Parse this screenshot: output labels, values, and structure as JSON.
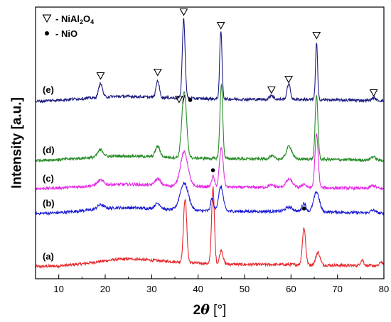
{
  "chart_data": {
    "type": "line",
    "xlabel": "2θ [°]",
    "xlabel_parts": {
      "theta": "2θ",
      "unit": "[°]"
    },
    "ylabel": "Intensity [a.u.]",
    "xlim": [
      5,
      80
    ],
    "x_ticks": [
      10,
      20,
      30,
      40,
      50,
      60,
      70,
      80
    ],
    "y_ticks": "none",
    "grid": false,
    "legend": {
      "position": "top-left",
      "entries": [
        {
          "marker": "triangle-down-open",
          "text": "NiAl2O4",
          "parts": [
            "- NiAl",
            "2",
            "O",
            "4"
          ]
        },
        {
          "marker": "filled-circle",
          "text": "NiO",
          "parts": [
            "- NiO"
          ]
        }
      ]
    },
    "series": [
      {
        "name": "(a)",
        "color": "#e8262a",
        "baseline": 0,
        "background": [
          [
            5,
            4
          ],
          [
            10,
            5
          ],
          [
            15,
            8
          ],
          [
            22,
            14
          ],
          [
            26,
            15
          ],
          [
            30,
            13
          ],
          [
            35,
            11
          ],
          [
            40,
            9
          ],
          [
            50,
            7
          ],
          [
            60,
            7
          ],
          [
            70,
            6
          ],
          [
            80,
            5
          ]
        ],
        "peaks": [
          [
            37.2,
            90,
            0.35
          ],
          [
            43.2,
            108,
            0.3
          ],
          [
            45.0,
            20,
            0.35
          ],
          [
            62.8,
            52,
            0.35
          ],
          [
            65.8,
            18,
            0.45
          ],
          [
            75.3,
            8,
            0.35
          ],
          [
            79.4,
            6,
            0.3
          ]
        ],
        "noise": 2
      },
      {
        "name": "(b)",
        "color": "#1b1bd6",
        "baseline": 75,
        "background": [
          [
            5,
            4
          ],
          [
            10,
            5
          ],
          [
            15,
            8
          ],
          [
            22,
            12
          ],
          [
            26,
            12
          ],
          [
            30,
            11
          ],
          [
            35,
            9
          ],
          [
            40,
            8
          ],
          [
            50,
            7
          ],
          [
            60,
            7
          ],
          [
            70,
            6
          ],
          [
            80,
            4
          ]
        ],
        "peaks": [
          [
            19.0,
            6,
            0.7
          ],
          [
            31.3,
            8,
            0.6
          ],
          [
            37.0,
            38,
            0.9
          ],
          [
            43.0,
            18,
            0.3
          ],
          [
            44.9,
            34,
            0.5
          ],
          [
            59.6,
            6,
            0.8
          ],
          [
            62.8,
            12,
            0.4
          ],
          [
            65.5,
            28,
            0.6
          ],
          [
            77.7,
            4,
            0.6
          ]
        ],
        "noise": 2
      },
      {
        "name": "(c)",
        "color": "#e629e6",
        "baseline": 110,
        "background": [
          [
            5,
            4
          ],
          [
            10,
            5
          ],
          [
            15,
            7
          ],
          [
            22,
            10
          ],
          [
            26,
            10
          ],
          [
            30,
            9
          ],
          [
            35,
            8
          ],
          [
            40,
            7
          ],
          [
            50,
            6
          ],
          [
            60,
            6
          ],
          [
            70,
            5
          ],
          [
            80,
            4
          ]
        ],
        "peaks": [
          [
            19.0,
            7,
            0.7
          ],
          [
            31.3,
            9,
            0.6
          ],
          [
            37.0,
            48,
            0.8
          ],
          [
            43.2,
            15,
            0.3
          ],
          [
            45.0,
            55,
            0.4
          ],
          [
            55.8,
            3,
            0.6
          ],
          [
            59.6,
            11,
            0.7
          ],
          [
            62.8,
            5,
            0.4
          ],
          [
            65.5,
            75,
            0.35
          ],
          [
            77.7,
            4,
            0.6
          ]
        ],
        "noise": 2
      },
      {
        "name": "(d)",
        "color": "#268c26",
        "baseline": 150,
        "background": [
          [
            5,
            4
          ],
          [
            10,
            5
          ],
          [
            15,
            7
          ],
          [
            22,
            10
          ],
          [
            26,
            10
          ],
          [
            30,
            9
          ],
          [
            35,
            8
          ],
          [
            40,
            7
          ],
          [
            50,
            6
          ],
          [
            60,
            6
          ],
          [
            70,
            5
          ],
          [
            80,
            4
          ]
        ],
        "peaks": [
          [
            19.0,
            10,
            0.6
          ],
          [
            31.3,
            15,
            0.5
          ],
          [
            37.0,
            93,
            0.5
          ],
          [
            45.0,
            105,
            0.3
          ],
          [
            55.8,
            4,
            0.5
          ],
          [
            59.6,
            18,
            0.6
          ],
          [
            65.5,
            90,
            0.3
          ],
          [
            77.7,
            5,
            0.5
          ]
        ],
        "noise": 2
      },
      {
        "name": "(e)",
        "color": "#1c1c80",
        "baseline": 235,
        "background": [
          [
            5,
            2
          ],
          [
            10,
            4
          ],
          [
            15,
            6
          ],
          [
            22,
            9
          ],
          [
            26,
            9
          ],
          [
            30,
            8
          ],
          [
            35,
            7
          ],
          [
            40,
            6
          ],
          [
            50,
            5
          ],
          [
            60,
            5
          ],
          [
            70,
            4
          ],
          [
            80,
            3
          ]
        ],
        "peaks": [
          [
            19.0,
            20,
            0.4
          ],
          [
            31.3,
            24,
            0.35
          ],
          [
            36.9,
            112,
            0.3
          ],
          [
            44.9,
            96,
            0.25
          ],
          [
            55.8,
            6,
            0.4
          ],
          [
            59.5,
            22,
            0.35
          ],
          [
            65.5,
            81,
            0.22
          ],
          [
            77.8,
            4,
            0.4
          ]
        ],
        "noise": 2
      }
    ],
    "annotations": [
      {
        "type": "triangle",
        "x": 19.0,
        "intensity": 273
      },
      {
        "type": "triangle",
        "x": 31.3,
        "intensity": 278
      },
      {
        "type": "triangle",
        "x": 36.9,
        "intensity": 363
      },
      {
        "type": "triangle",
        "x": 44.9,
        "intensity": 344
      },
      {
        "type": "triangle",
        "x": 55.8,
        "intensity": 253
      },
      {
        "type": "triangle",
        "x": 59.5,
        "intensity": 268
      },
      {
        "type": "triangle",
        "x": 65.5,
        "intensity": 330
      },
      {
        "type": "triangle",
        "x": 77.8,
        "intensity": 249
      },
      {
        "type": "triangle-slash",
        "x": 35.9,
        "intensity": 240
      },
      {
        "type": "dot",
        "x": 38.3,
        "intensity": 239
      },
      {
        "type": "dot",
        "x": 43.2,
        "intensity": 140
      },
      {
        "type": "dot",
        "x": 62.8,
        "intensity": 86
      }
    ]
  }
}
